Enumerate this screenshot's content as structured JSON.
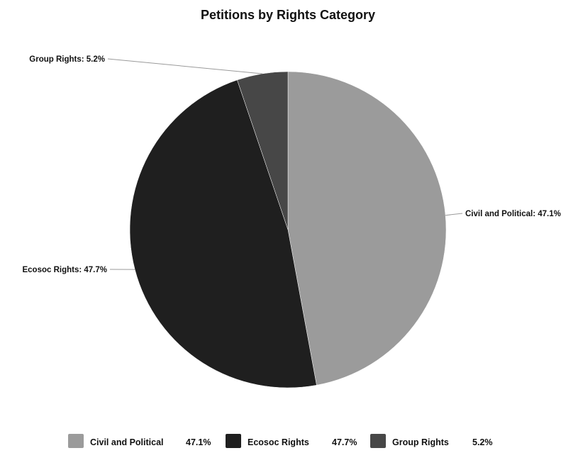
{
  "chart_data": {
    "type": "pie",
    "title": "Petitions by Rights Category",
    "unit": "%",
    "slices": [
      {
        "name": "Civil and Political",
        "value": 47.1,
        "label": "Civil and Political: 47.1%",
        "legend_value": "47.1%",
        "color": "#9b9b9b"
      },
      {
        "name": "Ecosoc Rights",
        "value": 47.7,
        "label": "Ecosoc Rights: 47.7%",
        "legend_value": "47.7%",
        "color": "#1f1f1f"
      },
      {
        "name": "Group Rights",
        "value": 5.2,
        "label": "Group Rights: 5.2%",
        "legend_value": "5.2%",
        "color": "#474747"
      }
    ],
    "legend_position": "bottom",
    "start_angle": "12 o'clock",
    "direction": "clockwise"
  }
}
